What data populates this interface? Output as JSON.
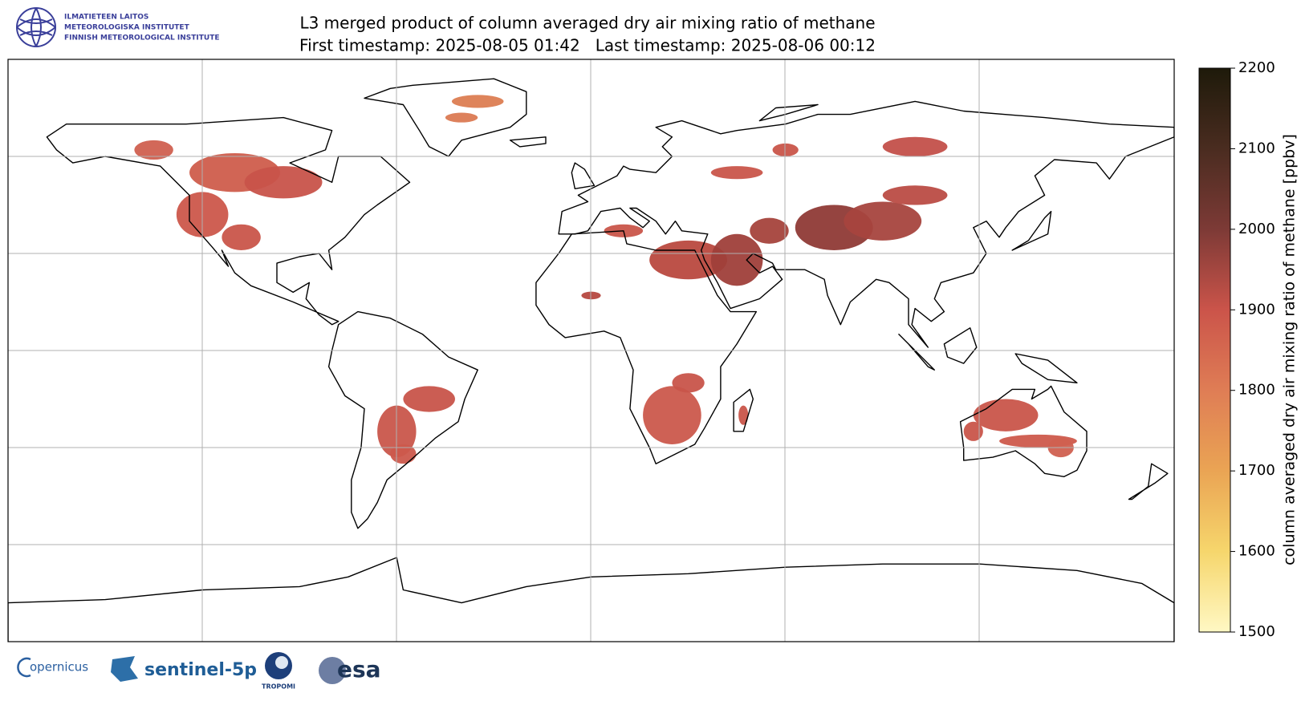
{
  "header": {
    "logo_lines": [
      "ILMATIETEEN LAITOS",
      "METEOROLOGISKA INSTITUTET",
      "FINNISH METEOROLOGICAL INSTITUTE"
    ],
    "title": "L3 merged product of column averaged dry air mixing ratio of methane",
    "subtitle": "First timestamp: 2025-08-05 01:42   Last timestamp: 2025-08-06 00:12"
  },
  "colorbar": {
    "label": "column averaged dry air mixing ratio of methane [ppbv]",
    "lim": [
      1500,
      2200
    ],
    "ticks": [
      1500,
      1600,
      1700,
      1800,
      1900,
      2000,
      2100,
      2200
    ]
  },
  "footer_logos": [
    "opernicus",
    "sentinel-5p",
    "TROPOMI",
    "esa"
  ]
}
